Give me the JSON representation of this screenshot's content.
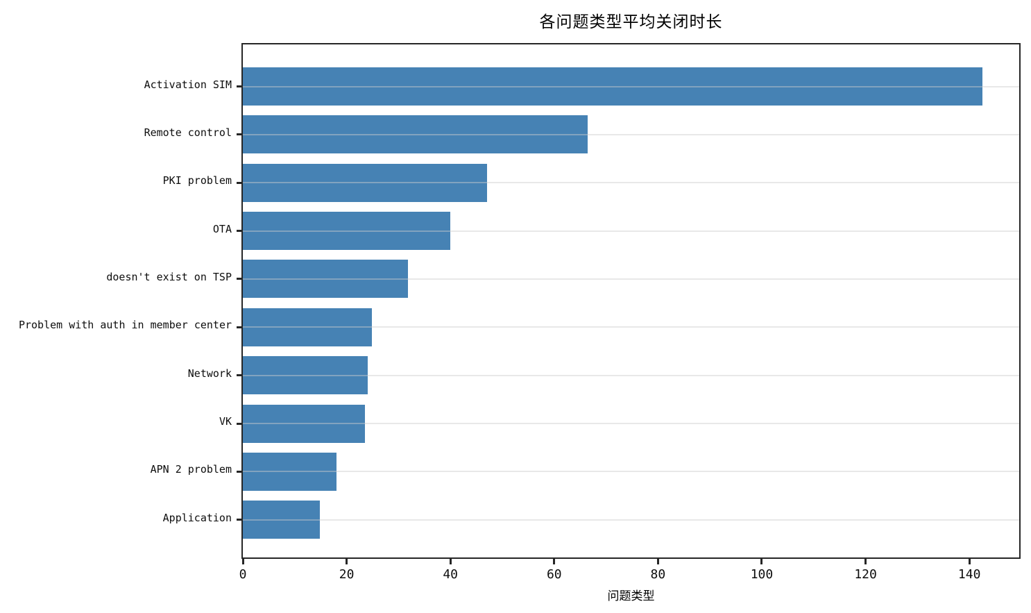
{
  "chart_data": {
    "type": "bar",
    "orientation": "horizontal",
    "title": "各问题类型平均关闭时长",
    "xlabel": "问题类型",
    "ylabel": "",
    "categories": [
      "Activation SIM",
      "Remote control",
      "PKI problem",
      "OTA",
      "doesn't exist on TSP",
      "Problem with auth in member center",
      "Network",
      "VK",
      "APN 2 problem",
      "Application"
    ],
    "values": [
      142.5,
      66.5,
      47.0,
      40.0,
      31.8,
      24.8,
      24.1,
      23.5,
      18.0,
      14.8
    ],
    "xticks": [
      0,
      20,
      40,
      60,
      80,
      100,
      120,
      140
    ],
    "xlim": [
      0,
      149.6
    ],
    "bar_color": "#4682B4",
    "grid": "horizontal-on-top-of-bars",
    "gridline_color": "#cdcdcd",
    "axis_color": "#262626",
    "legend": "none"
  }
}
